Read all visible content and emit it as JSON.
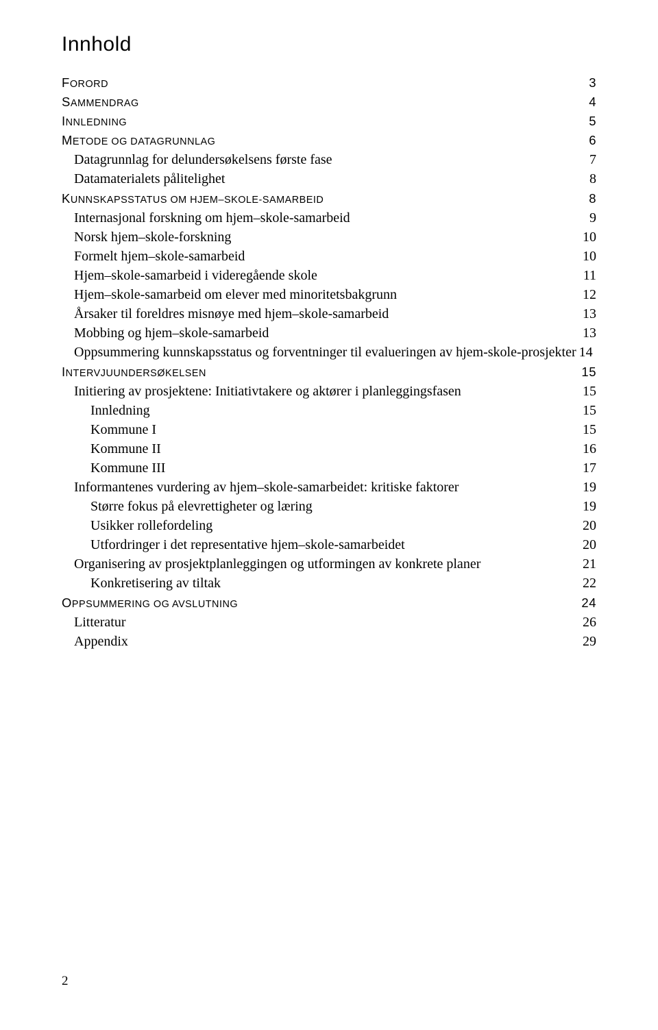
{
  "title": "Innhold",
  "page_number": "2",
  "entries": [
    {
      "level": 0,
      "label_caps": "F",
      "label_rest": "orord",
      "page": "3"
    },
    {
      "level": 0,
      "label_caps": "S",
      "label_rest": "ammendrag",
      "page": "4"
    },
    {
      "level": 0,
      "label_caps": "I",
      "label_rest": "nnledning",
      "page": "5"
    },
    {
      "level": 0,
      "label_caps": "M",
      "label_rest": "etode og datagrunnlag",
      "page": "6"
    },
    {
      "level": 1,
      "label": "Datagrunnlag for delundersøkelsens første fase",
      "page": "7"
    },
    {
      "level": 1,
      "label": "Datamaterialets pålitelighet",
      "page": "8"
    },
    {
      "level": 0,
      "label_caps": "K",
      "label_rest": "unnskapsstatus om hjem–skole-samarbeid",
      "page": "8"
    },
    {
      "level": 1,
      "label": "Internasjonal forskning om hjem–skole-samarbeid",
      "page": "9"
    },
    {
      "level": 1,
      "label": "Norsk hjem–skole-forskning",
      "page": "10"
    },
    {
      "level": 1,
      "label": "Formelt hjem–skole-samarbeid",
      "page": "10"
    },
    {
      "level": 1,
      "label": "Hjem–skole-samarbeid i videregående skole",
      "page": "11"
    },
    {
      "level": 1,
      "label": "Hjem–skole-samarbeid om elever med minoritetsbakgrunn",
      "page": "12"
    },
    {
      "level": 1,
      "label": "Årsaker til foreldres misnøye med hjem–skole-samarbeid",
      "page": "13"
    },
    {
      "level": 1,
      "label": "Mobbing og hjem–skole-samarbeid",
      "page": "13"
    },
    {
      "level": 1,
      "label": "Oppsummering kunnskapsstatus og forventninger til evalueringen av hjem-skole-prosjekter",
      "page": "14",
      "noleader": true
    },
    {
      "level": 0,
      "label_caps": "I",
      "label_rest": "ntervjuundersøkelsen",
      "page": "15"
    },
    {
      "level": 1,
      "label": "Initiering av prosjektene: Initiativtakere og aktører i planleggingsfasen",
      "page": "15"
    },
    {
      "level": 2,
      "label": "Innledning",
      "page": "15"
    },
    {
      "level": 2,
      "label": "Kommune I",
      "page": "15"
    },
    {
      "level": 2,
      "label": "Kommune II",
      "page": "16"
    },
    {
      "level": 2,
      "label": "Kommune III",
      "page": "17"
    },
    {
      "level": 1,
      "label": "Informantenes vurdering av hjem–skole-samarbeidet: kritiske faktorer",
      "page": "19"
    },
    {
      "level": 2,
      "label": "Større fokus på elevrettigheter og læring",
      "page": "19"
    },
    {
      "level": 2,
      "label": "Usikker rollefordeling",
      "page": "20"
    },
    {
      "level": 2,
      "label": "Utfordringer i det representative hjem–skole-samarbeidet",
      "page": "20"
    },
    {
      "level": 1,
      "label": "Organisering av prosjektplanleggingen og utformingen av konkrete planer",
      "page": "21"
    },
    {
      "level": 2,
      "label": "Konkretisering av tiltak",
      "page": "22"
    },
    {
      "level": 0,
      "label_caps": "O",
      "label_rest": "ppsummering og avslutning",
      "page": "24"
    },
    {
      "level": 1,
      "label": "Litteratur",
      "page": "26"
    },
    {
      "level": 1,
      "label": "Appendix",
      "page": "29"
    }
  ]
}
